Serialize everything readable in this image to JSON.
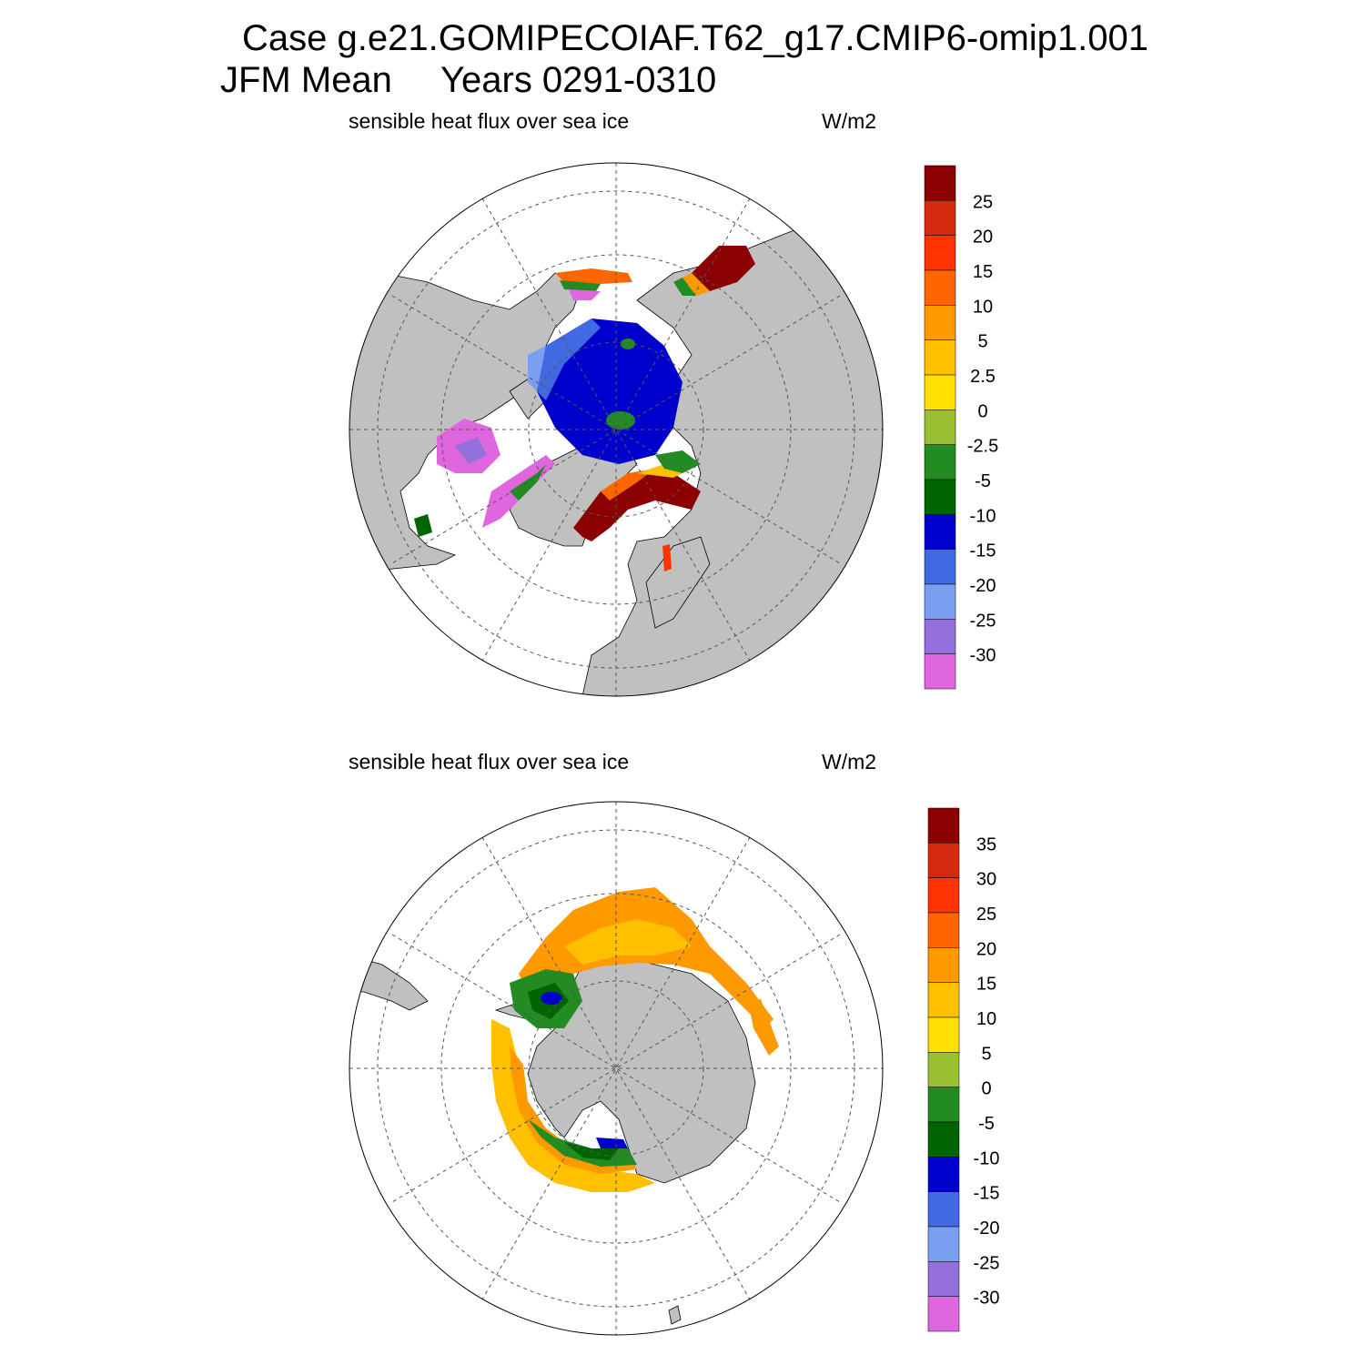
{
  "header": {
    "case_line": "Case g.e21.GOMIPECOIAF.T62_g17.CMIP6-omip1.001",
    "season": "JFM Mean",
    "years": "Years 0291-0310"
  },
  "panels": [
    {
      "hemisphere": "north",
      "variable_label": "sensible heat flux over sea ice",
      "units_label": "W/m2",
      "colorbar": {
        "labels": [
          "25",
          "20",
          "15",
          "10",
          "5",
          "2.5",
          "0",
          "-2.5",
          "-5",
          "-10",
          "-15",
          "-20",
          "-25",
          "-30"
        ],
        "colors": [
          "#8b0000",
          "#d62a10",
          "#ff3300",
          "#ff6600",
          "#ff9900",
          "#ffc000",
          "#ffe000",
          "#99c033",
          "#228b22",
          "#006400",
          "#0000cd",
          "#4169e1",
          "#7b9ff0",
          "#9370db",
          "#e066e0"
        ]
      }
    },
    {
      "hemisphere": "south",
      "variable_label": "sensible heat flux over sea ice",
      "units_label": "W/m2",
      "colorbar": {
        "labels": [
          "35",
          "30",
          "25",
          "20",
          "15",
          "10",
          "5",
          "0",
          "-5",
          "-10",
          "-15",
          "-20",
          "-25",
          "-30"
        ],
        "colors": [
          "#8b0000",
          "#d62a10",
          "#ff3300",
          "#ff6600",
          "#ff9900",
          "#ffc000",
          "#ffe000",
          "#99c033",
          "#228b22",
          "#006400",
          "#0000cd",
          "#4169e1",
          "#7b9ff0",
          "#9370db",
          "#e066e0"
        ]
      }
    }
  ],
  "style": {
    "land_color": "#c0c0c0",
    "grid_color": "#555555"
  }
}
